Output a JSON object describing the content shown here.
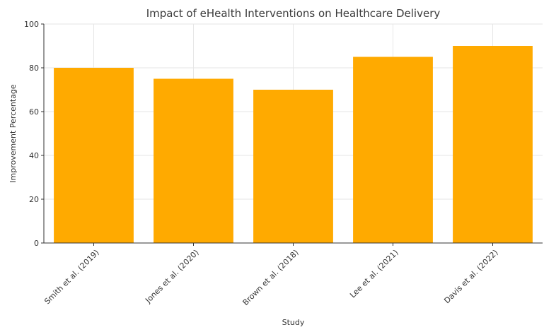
{
  "chart_data": {
    "type": "bar",
    "title": "Impact of eHealth Interventions on Healthcare Delivery",
    "xlabel": "Study",
    "ylabel": "Improvement Percentage",
    "categories": [
      "Smith et al. (2019)",
      "Jones et al. (2020)",
      "Brown et al. (2018)",
      "Lee et al. (2021)",
      "Davis et al. (2022)"
    ],
    "values": [
      80,
      75,
      70,
      85,
      90
    ],
    "ylim": [
      0,
      100
    ],
    "yticks": [
      0,
      20,
      40,
      60,
      80,
      100
    ],
    "grid": true,
    "legend": "none",
    "bar_color": "#ffaa00"
  }
}
